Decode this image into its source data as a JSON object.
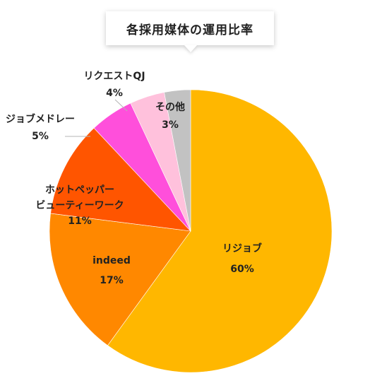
{
  "chart_data": {
    "type": "pie",
    "title": "各採用媒体の運用比率",
    "slices": [
      {
        "name": "リジョブ",
        "value": 60,
        "label": "60%",
        "color": "#ffb700"
      },
      {
        "name": "indeed",
        "value": 17,
        "label": "17%",
        "color": "#ff8800"
      },
      {
        "name": "ホットペッパービューティーワーク",
        "name_lines": [
          "ホットペッパー",
          "ビューティーワーク"
        ],
        "value": 11,
        "label": "11%",
        "color": "#ff5500"
      },
      {
        "name": "ジョブメドレー",
        "value": 5,
        "label": "5%",
        "color": "#ff4fdb"
      },
      {
        "name": "リクエストQJ",
        "value": 4,
        "label": "4%",
        "color": "#ffc1dc"
      },
      {
        "name": "その他",
        "value": 3,
        "label": "3%",
        "color": "#c2c2c2"
      }
    ]
  }
}
